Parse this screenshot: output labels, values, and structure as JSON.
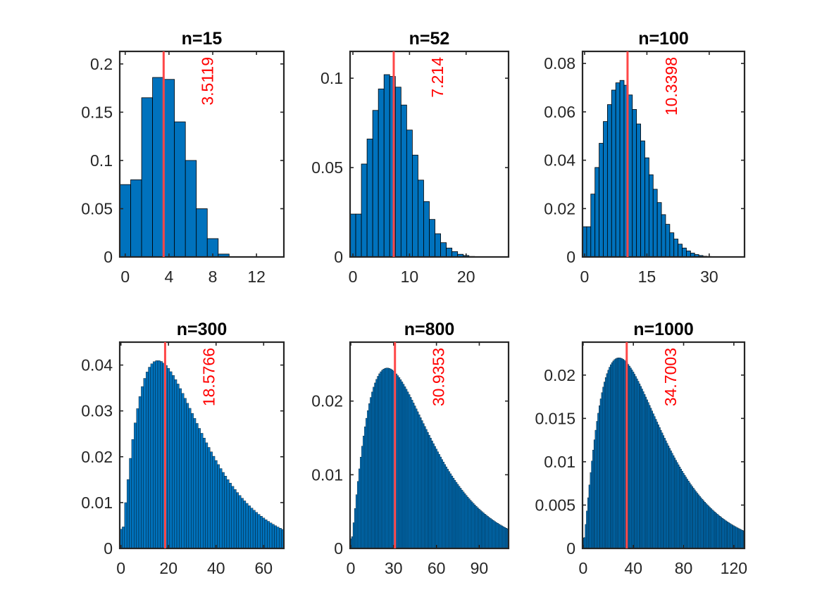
{
  "chart_data": [
    {
      "type": "bar",
      "title": "n=15",
      "xlabel": "",
      "ylabel": "",
      "xlim": [
        -0.5,
        14.5
      ],
      "ylim": [
        0,
        0.213
      ],
      "xticks": [
        0,
        4,
        8,
        12
      ],
      "xtick_labels": [
        "0",
        "4",
        "8",
        "12"
      ],
      "yticks": [
        0,
        0.05,
        0.1,
        0.15,
        0.2
      ],
      "ytick_labels": [
        "0",
        "0.05",
        "0.1",
        "0.15",
        "0.2"
      ],
      "bins_start": -0.5,
      "bin_width": 1,
      "values": [
        0.075,
        0.08,
        0.165,
        0.186,
        0.184,
        0.14,
        0.1,
        0.05,
        0.019,
        0.003,
        0,
        0,
        0,
        0,
        0
      ],
      "mean": 3.5119,
      "mean_label": "3.5119"
    },
    {
      "type": "bar",
      "title": "n=52",
      "xlabel": "",
      "ylabel": "",
      "xlim": [
        -0.5,
        27.5
      ],
      "ylim": [
        0,
        0.115
      ],
      "xticks": [
        0,
        10,
        20
      ],
      "xtick_labels": [
        "0",
        "10",
        "20"
      ],
      "yticks": [
        0,
        0.05,
        0.1
      ],
      "ytick_labels": [
        "0",
        "0.05",
        "0.1"
      ],
      "bins_start": -0.5,
      "bin_width": 1,
      "values": [
        0.024,
        0.024,
        0.052,
        0.066,
        0.082,
        0.094,
        0.102,
        0.101,
        0.095,
        0.085,
        0.071,
        0.057,
        0.043,
        0.031,
        0.021,
        0.013,
        0.008,
        0.005,
        0.003,
        0.0015,
        0.0008,
        0.0003,
        0.0001,
        0,
        0,
        0,
        0,
        0
      ],
      "mean": 7.214,
      "mean_label": "7.214"
    },
    {
      "type": "bar",
      "title": "n=100",
      "xlabel": "",
      "ylabel": "",
      "xlim": [
        -0.5,
        38.5
      ],
      "ylim": [
        0,
        0.085
      ],
      "xticks": [
        0,
        15,
        30
      ],
      "xtick_labels": [
        "0",
        "15",
        "30"
      ],
      "yticks": [
        0,
        0.02,
        0.04,
        0.06,
        0.08
      ],
      "ytick_labels": [
        "0",
        "0.02",
        "0.04",
        "0.06",
        "0.08"
      ],
      "bins_start": -0.5,
      "bin_width": 1,
      "values": [
        0.0125,
        0.0125,
        0.026,
        0.037,
        0.047,
        0.056,
        0.063,
        0.069,
        0.072,
        0.073,
        0.071,
        0.067,
        0.061,
        0.055,
        0.048,
        0.041,
        0.034,
        0.028,
        0.0225,
        0.0175,
        0.0135,
        0.01,
        0.0074,
        0.0053,
        0.0037,
        0.0025,
        0.0016,
        0.001,
        0.0006,
        0.0003,
        0.0002,
        0.0001,
        0,
        0,
        0,
        0,
        0,
        0,
        0
      ],
      "mean": 10.3398,
      "mean_label": "10.3398"
    },
    {
      "type": "bar",
      "title": "n=300",
      "xlabel": "",
      "ylabel": "",
      "xlim": [
        -0.5,
        68.5
      ],
      "ylim": [
        0,
        0.045
      ],
      "xticks": [
        0,
        20,
        40,
        60
      ],
      "xtick_labels": [
        "0",
        "20",
        "40",
        "60"
      ],
      "yticks": [
        0,
        0.01,
        0.02,
        0.03,
        0.04
      ],
      "ytick_labels": [
        "0",
        "0.01",
        "0.02",
        "0.03",
        "0.04"
      ],
      "bins_start": -0.5,
      "bin_width": 1,
      "dist": {
        "shape": 2.2,
        "mode": 15.5,
        "peak": 0.041,
        "first_bin": 0.0042
      },
      "mean": 18.5766,
      "mean_label": "18.5766"
    },
    {
      "type": "bar",
      "title": "n=800",
      "xlabel": "",
      "ylabel": "",
      "xlim": [
        -0.5,
        110.5
      ],
      "ylim": [
        0,
        0.028
      ],
      "xticks": [
        0,
        30,
        60,
        90
      ],
      "xtick_labels": [
        "0",
        "30",
        "60",
        "90"
      ],
      "yticks": [
        0,
        0.01,
        0.02
      ],
      "ytick_labels": [
        "0",
        "0.01",
        "0.02"
      ],
      "bins_start": -0.5,
      "bin_width": 1,
      "dist": {
        "shape": 2.2,
        "mode": 25.5,
        "peak": 0.0245,
        "first_bin": 0.0013
      },
      "mean": 30.9353,
      "mean_label": "30.9353"
    },
    {
      "type": "bar",
      "title": "n=1000",
      "xlabel": "",
      "ylabel": "",
      "xlim": [
        -0.5,
        128.5
      ],
      "ylim": [
        0,
        0.0238
      ],
      "xticks": [
        0,
        40,
        80,
        120
      ],
      "xtick_labels": [
        "0",
        "40",
        "80",
        "120"
      ],
      "yticks": [
        0,
        0.005,
        0.01,
        0.015,
        0.02
      ],
      "ytick_labels": [
        "0",
        "0.005",
        "0.01",
        "0.015",
        "0.02"
      ],
      "bins_start": -0.5,
      "bin_width": 1,
      "dist": {
        "shape": 2.2,
        "mode": 28.5,
        "peak": 0.022,
        "first_bin": 0.0012
      },
      "mean": 34.7003,
      "mean_label": "34.7003"
    }
  ]
}
